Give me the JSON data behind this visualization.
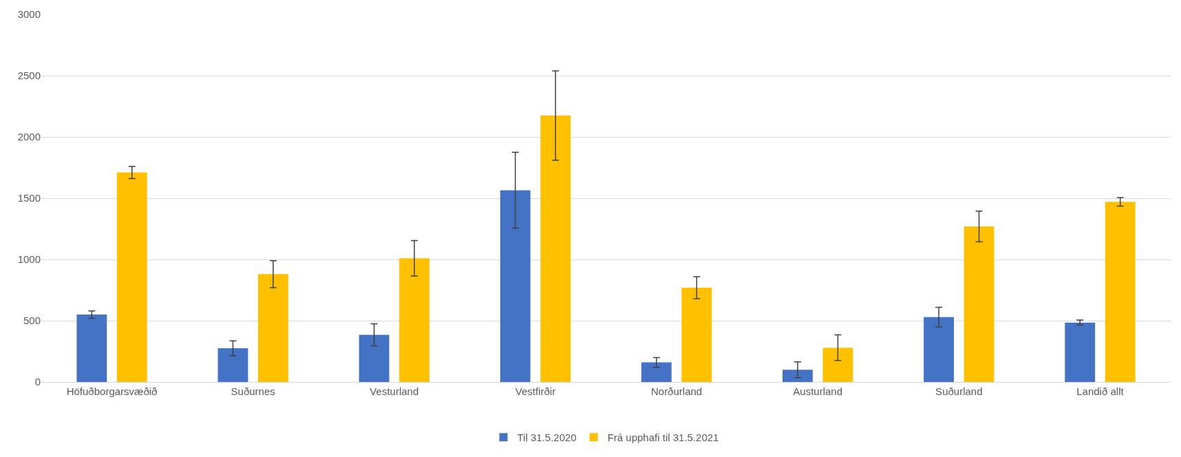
{
  "chart_data": {
    "type": "bar",
    "categories": [
      "Höfuðborgarsvæðið",
      "Suðurnes",
      "Vesturland",
      "Vestfirðir",
      "Norðurland",
      "Austurland",
      "Suðurland",
      "Landið allt"
    ],
    "series": [
      {
        "name": "Til 31.5.2020",
        "color": "#4472c4",
        "values": [
          550,
          275,
          385,
          1565,
          160,
          100,
          530,
          485
        ],
        "errors": [
          30,
          60,
          90,
          310,
          40,
          65,
          80,
          20
        ]
      },
      {
        "name": "Frá upphafi til 31.5.2021",
        "color": "#ffc000",
        "values": [
          1710,
          880,
          1010,
          2175,
          770,
          280,
          1270,
          1470
        ],
        "errors": [
          50,
          110,
          145,
          365,
          90,
          105,
          125,
          35
        ]
      }
    ],
    "ylim": [
      0,
      3000
    ],
    "yticks": [
      0,
      500,
      1000,
      1500,
      2000,
      2500,
      3000
    ],
    "grid": "y",
    "legend": "bottom"
  }
}
